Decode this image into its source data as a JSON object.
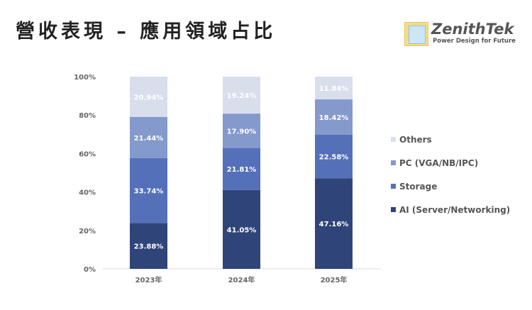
{
  "title": "營收表現 – 應用領域占比",
  "logo": {
    "name": "ZenithTek",
    "tagline": "Power Design for Future"
  },
  "chart_data": {
    "type": "bar",
    "stacked": true,
    "title": "營收表現 – 應用領域占比",
    "categories": [
      "2023年",
      "2024年",
      "2025年"
    ],
    "ylim": [
      0,
      100
    ],
    "yticks": [
      "0%",
      "20%",
      "40%",
      "60%",
      "80%",
      "100%"
    ],
    "series": [
      {
        "name": "AI (Server/Networking)",
        "color": "#2f4479",
        "values": [
          23.88,
          41.05,
          47.16
        ],
        "labels": [
          "23.88%",
          "41.05%",
          "47.16%"
        ]
      },
      {
        "name": "Storage",
        "color": "#5470b8",
        "values": [
          33.74,
          21.81,
          22.58
        ],
        "labels": [
          "33.74%",
          "21.81%",
          "22.58%"
        ]
      },
      {
        "name": "PC (VGA/NB/IPC)",
        "color": "#8499cc",
        "values": [
          21.44,
          17.9,
          18.42
        ],
        "labels": [
          "21.44%",
          "17.90%",
          "18.42%"
        ]
      },
      {
        "name": "Others",
        "color": "#d9deec",
        "values": [
          20.94,
          19.24,
          11.84
        ],
        "labels": [
          "20.94%",
          "19.24%",
          "11.84%"
        ]
      }
    ],
    "legend": "right"
  }
}
